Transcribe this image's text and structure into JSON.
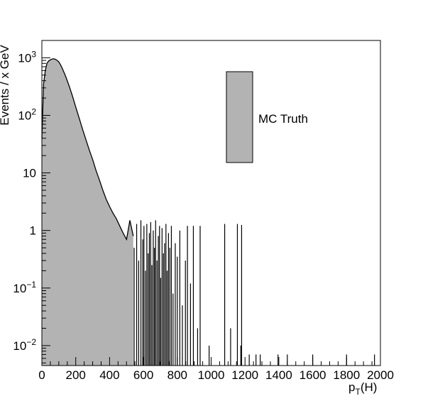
{
  "chart_data": {
    "type": "area",
    "title": "",
    "xlabel": "p_T(H)",
    "xlabel_parts": {
      "main": "p",
      "sub": "T",
      "rest": "(H)"
    },
    "ylabel": "Events / x GeV",
    "xlim": [
      0,
      2000
    ],
    "ylim": [
      0.0045,
      2000
    ],
    "log_y": true,
    "grid": false,
    "x_ticks": [
      0,
      200,
      400,
      600,
      800,
      1000,
      1200,
      1400,
      1600,
      1800,
      2000
    ],
    "x_tick_labels": [
      "0",
      "200",
      "400",
      "600",
      "800",
      "1000",
      "1200",
      "1400",
      "1600",
      "1800",
      "2000"
    ],
    "y_ticks": [
      {
        "value": 0.01,
        "base": "10",
        "exp": "−2"
      },
      {
        "value": 0.1,
        "base": "10",
        "exp": "−1"
      },
      {
        "value": 1,
        "base": "1",
        "exp": ""
      },
      {
        "value": 10,
        "base": "10",
        "exp": ""
      },
      {
        "value": 100,
        "base": "10",
        "exp": "2"
      },
      {
        "value": 1000,
        "base": "10",
        "exp": "3"
      }
    ],
    "legend": {
      "position": "top-right",
      "entries": [
        {
          "label": "MC Truth",
          "color": "#b3b3b3"
        }
      ]
    },
    "series": [
      {
        "name": "MC Truth",
        "fill_color": "#b3b3b3",
        "line_color": "#000000",
        "x": [
          0,
          10,
          20,
          30,
          40,
          50,
          60,
          70,
          80,
          90,
          100,
          110,
          120,
          140,
          160,
          180,
          200,
          220,
          240,
          260,
          280,
          300,
          320,
          340,
          360,
          380,
          400,
          420,
          440,
          460,
          480,
          500,
          520,
          540
        ],
        "values": [
          40,
          350,
          600,
          800,
          880,
          920,
          950,
          960,
          940,
          900,
          850,
          760,
          660,
          480,
          330,
          220,
          140,
          90,
          58,
          38,
          25,
          17,
          11,
          7.5,
          5,
          3.5,
          2.6,
          2,
          1.6,
          1.2,
          0.9,
          0.7,
          1.5,
          0.8
        ]
      }
    ],
    "sparse_bins": {
      "x": [
        545,
        560,
        572,
        585,
        596,
        603,
        612,
        620,
        628,
        635,
        643,
        650,
        658,
        665,
        672,
        680,
        688,
        695,
        702,
        710,
        718,
        725,
        733,
        740,
        748,
        756,
        765,
        775,
        788,
        800,
        815,
        830,
        848,
        860,
        878,
        895,
        920,
        935,
        988,
        1080,
        1115,
        1155,
        1175,
        1180,
        1225,
        1265,
        1290,
        1395,
        1450,
        1600,
        1800,
        1965
      ],
      "values": [
        0.5,
        1.3,
        0.3,
        1.5,
        0.7,
        1.2,
        0.2,
        1.3,
        0.4,
        0.9,
        1.4,
        0.25,
        1.0,
        0.5,
        1.5,
        0.3,
        0.8,
        1.2,
        0.15,
        1.1,
        0.4,
        0.6,
        1.3,
        0.2,
        0.9,
        0.5,
        1.2,
        0.08,
        0.6,
        0.35,
        1.0,
        0.05,
        0.3,
        1.2,
        0.12,
        1.2,
        0.02,
        1.2,
        0.01,
        1.3,
        0.02,
        1.3,
        0.01,
        1.25,
        0.007,
        0.007,
        0.007,
        0.007,
        0.007,
        0.007,
        0.007,
        0.007
      ]
    }
  }
}
